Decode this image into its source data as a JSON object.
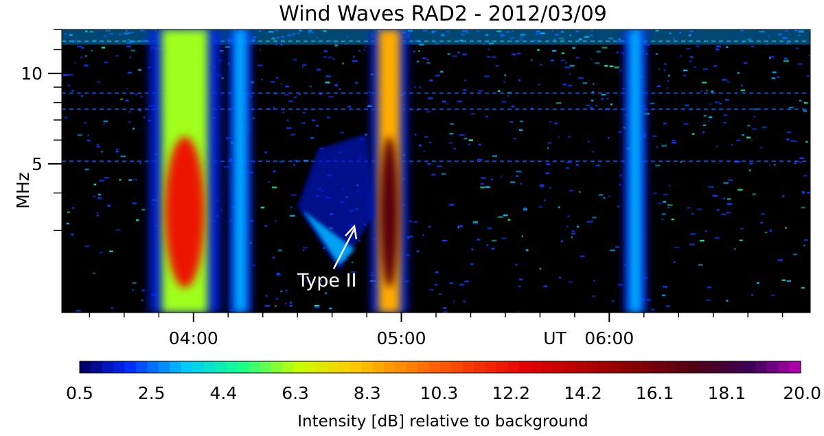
{
  "chart_data": {
    "type": "heatmap",
    "title": "Wind Waves RAD2 - 2012/03/09",
    "xlabel": "UT",
    "ylabel": "MHz",
    "x_ticks": [
      {
        "label": "04:00",
        "time": "04:00"
      },
      {
        "label": "05:00",
        "time": "05:00"
      },
      {
        "label": "06:00",
        "time": "06:00"
      }
    ],
    "x_range": [
      "03:22",
      "06:58"
    ],
    "y_ticks": [
      {
        "label": "10",
        "value": 10
      },
      {
        "label": "5",
        "value": 5
      }
    ],
    "y_minor_ticks": [
      3,
      4,
      6,
      7,
      8,
      9,
      12,
      14
    ],
    "y_range": [
      1.6,
      14
    ],
    "y_scale": "log",
    "colorbar": {
      "label": "Intensity [dB] relative to background",
      "range": [
        0.5,
        20.0
      ],
      "tick_labels": [
        "0.5",
        "2.5",
        "4.4",
        "6.3",
        "8.3",
        "10.3",
        "12.2",
        "14.2",
        "16.1",
        "18.1",
        "20.0"
      ]
    },
    "annotation": {
      "text": "Type II",
      "time": "04:41",
      "freq_mhz": 2.2
    },
    "features": [
      {
        "name": "burst-1",
        "start": "03:48",
        "end": "04:07",
        "peak_db": 12
      },
      {
        "name": "burst-2",
        "start": "04:11",
        "end": "04:16",
        "peak_db": 4
      },
      {
        "name": "burst-3",
        "start": "04:52",
        "end": "05:01",
        "peak_db": 17
      },
      {
        "name": "type-ii",
        "start": "04:30",
        "end": "04:52",
        "peak_db": 3
      },
      {
        "name": "burst-4",
        "start": "06:05",
        "end": "06:10",
        "peak_db": 2
      }
    ]
  }
}
